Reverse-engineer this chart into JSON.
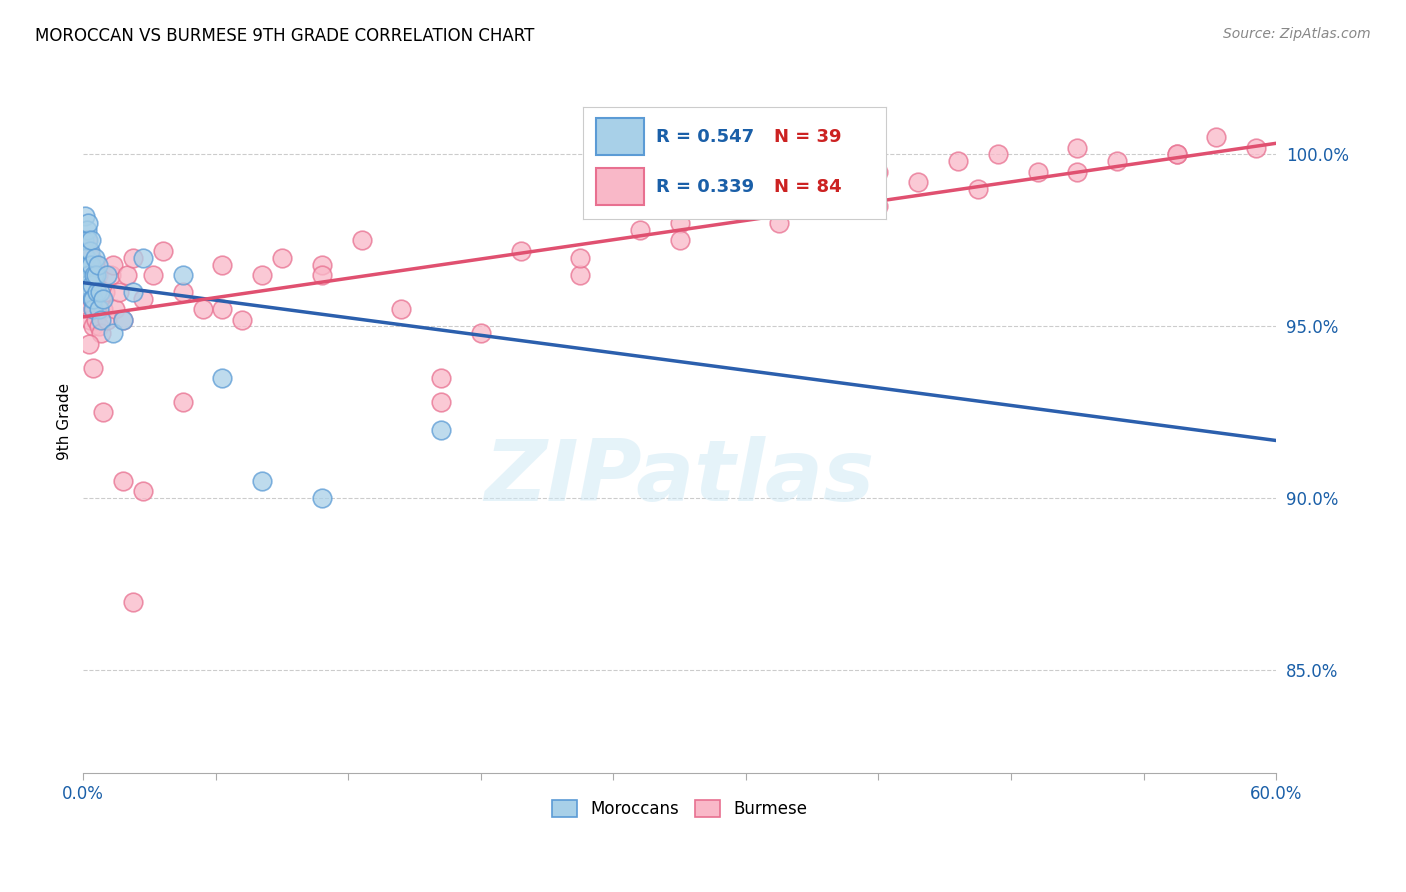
{
  "title": "MOROCCAN VS BURMESE 9TH GRADE CORRELATION CHART",
  "source": "Source: ZipAtlas.com",
  "ylabel": "9th Grade",
  "right_yticks": [
    85.0,
    90.0,
    95.0,
    100.0
  ],
  "xmin": 0.0,
  "xmax": 60.0,
  "ymin": 82.0,
  "ymax": 102.5,
  "moroccan_R": 0.547,
  "moroccan_N": 39,
  "burmese_R": 0.339,
  "burmese_N": 84,
  "moroccan_color": "#a8d0e8",
  "burmese_color": "#f9b8c8",
  "moroccan_edge_color": "#5b9bd5",
  "burmese_edge_color": "#e87090",
  "moroccan_line_color": "#2b5fad",
  "burmese_line_color": "#e05070",
  "legend_R_color": "#1a5fa8",
  "legend_N_color": "#cc2222",
  "moroccan_x": [
    0.05,
    0.08,
    0.1,
    0.12,
    0.15,
    0.18,
    0.2,
    0.22,
    0.25,
    0.28,
    0.3,
    0.32,
    0.35,
    0.38,
    0.4,
    0.42,
    0.45,
    0.48,
    0.5,
    0.55,
    0.6,
    0.65,
    0.7,
    0.75,
    0.8,
    0.85,
    0.9,
    1.0,
    1.2,
    1.5,
    2.0,
    2.5,
    3.0,
    5.0,
    7.0,
    9.0,
    12.0,
    18.0,
    30.0
  ],
  "moroccan_y": [
    97.5,
    96.8,
    98.2,
    97.0,
    96.5,
    97.8,
    96.2,
    97.5,
    98.0,
    96.8,
    96.5,
    97.2,
    96.0,
    96.8,
    97.5,
    95.8,
    96.2,
    95.5,
    95.8,
    96.5,
    97.0,
    96.5,
    96.0,
    96.8,
    95.5,
    96.0,
    95.2,
    95.8,
    96.5,
    94.8,
    95.2,
    96.0,
    97.0,
    96.5,
    93.5,
    90.5,
    90.0,
    92.0,
    99.8
  ],
  "burmese_x": [
    0.05,
    0.08,
    0.1,
    0.12,
    0.15,
    0.18,
    0.2,
    0.22,
    0.25,
    0.28,
    0.3,
    0.32,
    0.35,
    0.38,
    0.4,
    0.42,
    0.45,
    0.48,
    0.5,
    0.55,
    0.6,
    0.65,
    0.7,
    0.75,
    0.8,
    0.85,
    0.9,
    1.0,
    1.1,
    1.2,
    1.4,
    1.5,
    1.6,
    1.8,
    2.0,
    2.2,
    2.5,
    3.0,
    3.5,
    4.0,
    5.0,
    6.0,
    7.0,
    8.0,
    9.0,
    10.0,
    12.0,
    14.0,
    16.0,
    18.0,
    20.0,
    22.0,
    25.0,
    28.0,
    30.0,
    35.0,
    38.0,
    40.0,
    42.0,
    44.0,
    46.0,
    48.0,
    50.0,
    52.0,
    55.0,
    57.0,
    59.0,
    0.3,
    0.5,
    1.0,
    2.0,
    3.0,
    5.0,
    7.0,
    12.0,
    18.0,
    25.0,
    30.0,
    35.0,
    40.0,
    45.0,
    50.0,
    55.0,
    2.5
  ],
  "burmese_y": [
    96.8,
    97.2,
    96.5,
    95.8,
    97.0,
    96.2,
    97.5,
    95.5,
    96.0,
    97.2,
    95.5,
    96.8,
    95.2,
    96.0,
    97.0,
    95.8,
    96.5,
    95.0,
    96.2,
    95.5,
    96.8,
    95.2,
    96.0,
    96.5,
    95.0,
    95.8,
    94.8,
    95.5,
    96.0,
    95.2,
    96.5,
    96.8,
    95.5,
    96.0,
    95.2,
    96.5,
    97.0,
    95.8,
    96.5,
    97.2,
    96.0,
    95.5,
    96.8,
    95.2,
    96.5,
    97.0,
    96.8,
    97.5,
    95.5,
    93.5,
    94.8,
    97.2,
    96.5,
    97.8,
    98.0,
    98.5,
    99.0,
    99.5,
    99.2,
    99.8,
    100.0,
    99.5,
    100.2,
    99.8,
    100.0,
    100.5,
    100.2,
    94.5,
    93.8,
    92.5,
    90.5,
    90.2,
    92.8,
    95.5,
    96.5,
    92.8,
    97.0,
    97.5,
    98.0,
    98.5,
    99.0,
    99.5,
    100.0,
    87.0
  ]
}
